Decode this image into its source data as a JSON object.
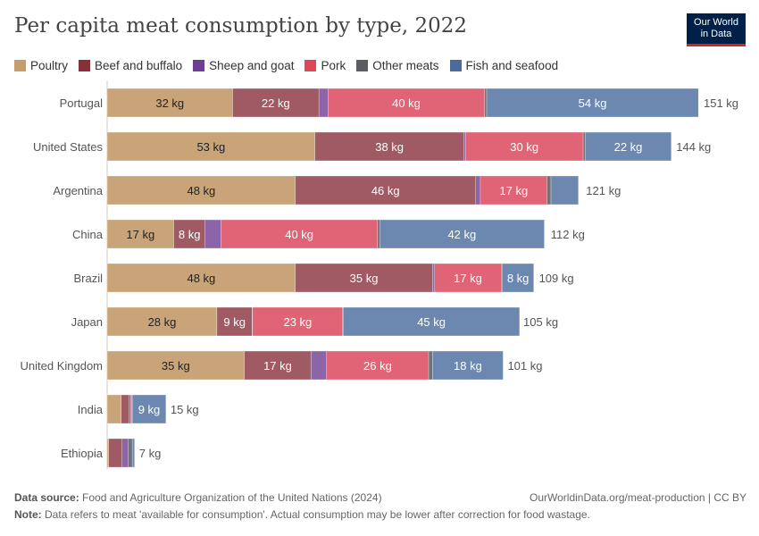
{
  "title": "Per capita meat consumption by type, 2022",
  "logo": {
    "line1": "Our World",
    "line2": "in Data"
  },
  "footer": {
    "source_label": "Data source:",
    "source": "Food and Agriculture Organization of the United Nations (2024)",
    "url": "OurWorldinData.org/meat-production | CC BY",
    "note_label": "Note:",
    "note": "Data refers to meat 'available for consumption'. Actual consumption may be lower after correction for food wastage."
  },
  "chart_data": {
    "type": "bar",
    "orientation": "horizontal",
    "stacked": true,
    "unit": "kg",
    "title": "Per capita meat consumption by type, 2022",
    "legend_position": "top-left",
    "categories": [
      "Portugal",
      "United States",
      "Argentina",
      "China",
      "Brazil",
      "Japan",
      "United Kingdom",
      "India",
      "Ethiopia"
    ],
    "totals": [
      "151 kg",
      "144 kg",
      "121 kg",
      "112 kg",
      "109 kg",
      "105 kg",
      "101 kg",
      "15 kg",
      "7 kg"
    ],
    "total_values": [
      151,
      144,
      121,
      112,
      109,
      105,
      101,
      15,
      7
    ],
    "series": [
      {
        "name": "Poultry",
        "legend_color": "#C59E6E",
        "color": "#C8A478",
        "values": [
          32,
          53,
          48,
          17,
          48,
          28,
          35,
          3.6,
          0.4
        ]
      },
      {
        "name": "Beef and buffalo",
        "legend_color": "#883039",
        "color": "#A05A63",
        "values": [
          22,
          38,
          46,
          8,
          35,
          9,
          17,
          2,
          3.4
        ]
      },
      {
        "name": "Sheep and goat",
        "legend_color": "#6D3E91",
        "color": "#8C64A8",
        "values": [
          2.3,
          0.4,
          1.2,
          4,
          0.5,
          0.1,
          4,
          0.4,
          1.6
        ]
      },
      {
        "name": "Pork",
        "legend_color": "#E04756",
        "color": "#E06475",
        "values": [
          40,
          30,
          17,
          40,
          17,
          23,
          26,
          0.3,
          0
        ]
      },
      {
        "name": "Other meats",
        "legend_color": "#5B5D62",
        "color": "#707378",
        "values": [
          0.5,
          0.5,
          1,
          0.5,
          0.3,
          0.1,
          1,
          0.1,
          1
        ]
      },
      {
        "name": "Fish and seafood",
        "legend_color": "#4C6A9C",
        "color": "#6C88B0",
        "values": [
          54,
          22,
          7,
          42,
          8,
          45,
          18,
          8.6,
          0.6
        ]
      }
    ],
    "xlim": [
      0,
      151
    ]
  }
}
